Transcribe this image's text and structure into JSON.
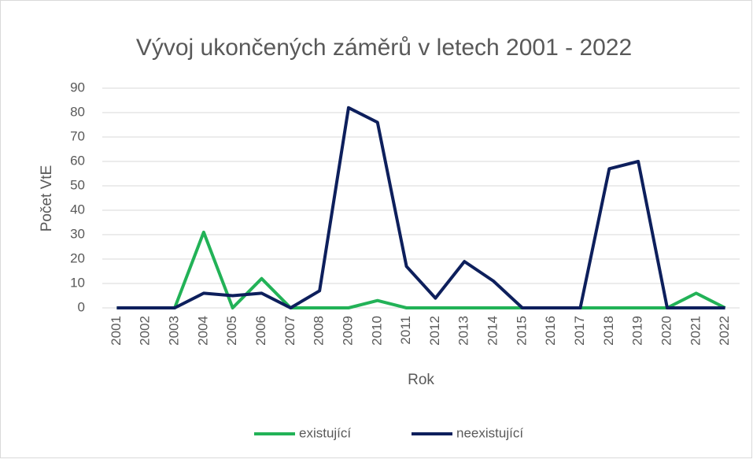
{
  "chart_data": {
    "type": "line",
    "title": "Vývoj ukončených záměrů v letech 2001 - 2022",
    "x_label": "Rok",
    "y_label": "Počet VtE",
    "categories": [
      "2001",
      "2002",
      "2003",
      "2004",
      "2005",
      "2006",
      "2007",
      "2008",
      "2009",
      "2010",
      "2011",
      "2012",
      "2013",
      "2014",
      "2015",
      "2016",
      "2017",
      "2018",
      "2019",
      "2020",
      "2021",
      "2022"
    ],
    "series": [
      {
        "name": "existující",
        "color": "#22b257",
        "values": [
          0,
          0,
          0,
          31,
          0,
          12,
          0,
          0,
          0,
          3,
          0,
          0,
          0,
          0,
          0,
          0,
          0,
          0,
          0,
          0,
          6,
          0
        ]
      },
      {
        "name": "neexistující",
        "color": "#0d1f5c",
        "values": [
          0,
          0,
          0,
          6,
          5,
          6,
          0,
          7,
          82,
          76,
          17,
          4,
          19,
          11,
          0,
          0,
          0,
          57,
          60,
          0,
          0,
          0
        ]
      }
    ],
    "ylim": [
      0,
      90
    ],
    "yticks": [
      0,
      10,
      20,
      30,
      40,
      50,
      60,
      70,
      80,
      90
    ],
    "grid": true,
    "legend": "bottom"
  }
}
